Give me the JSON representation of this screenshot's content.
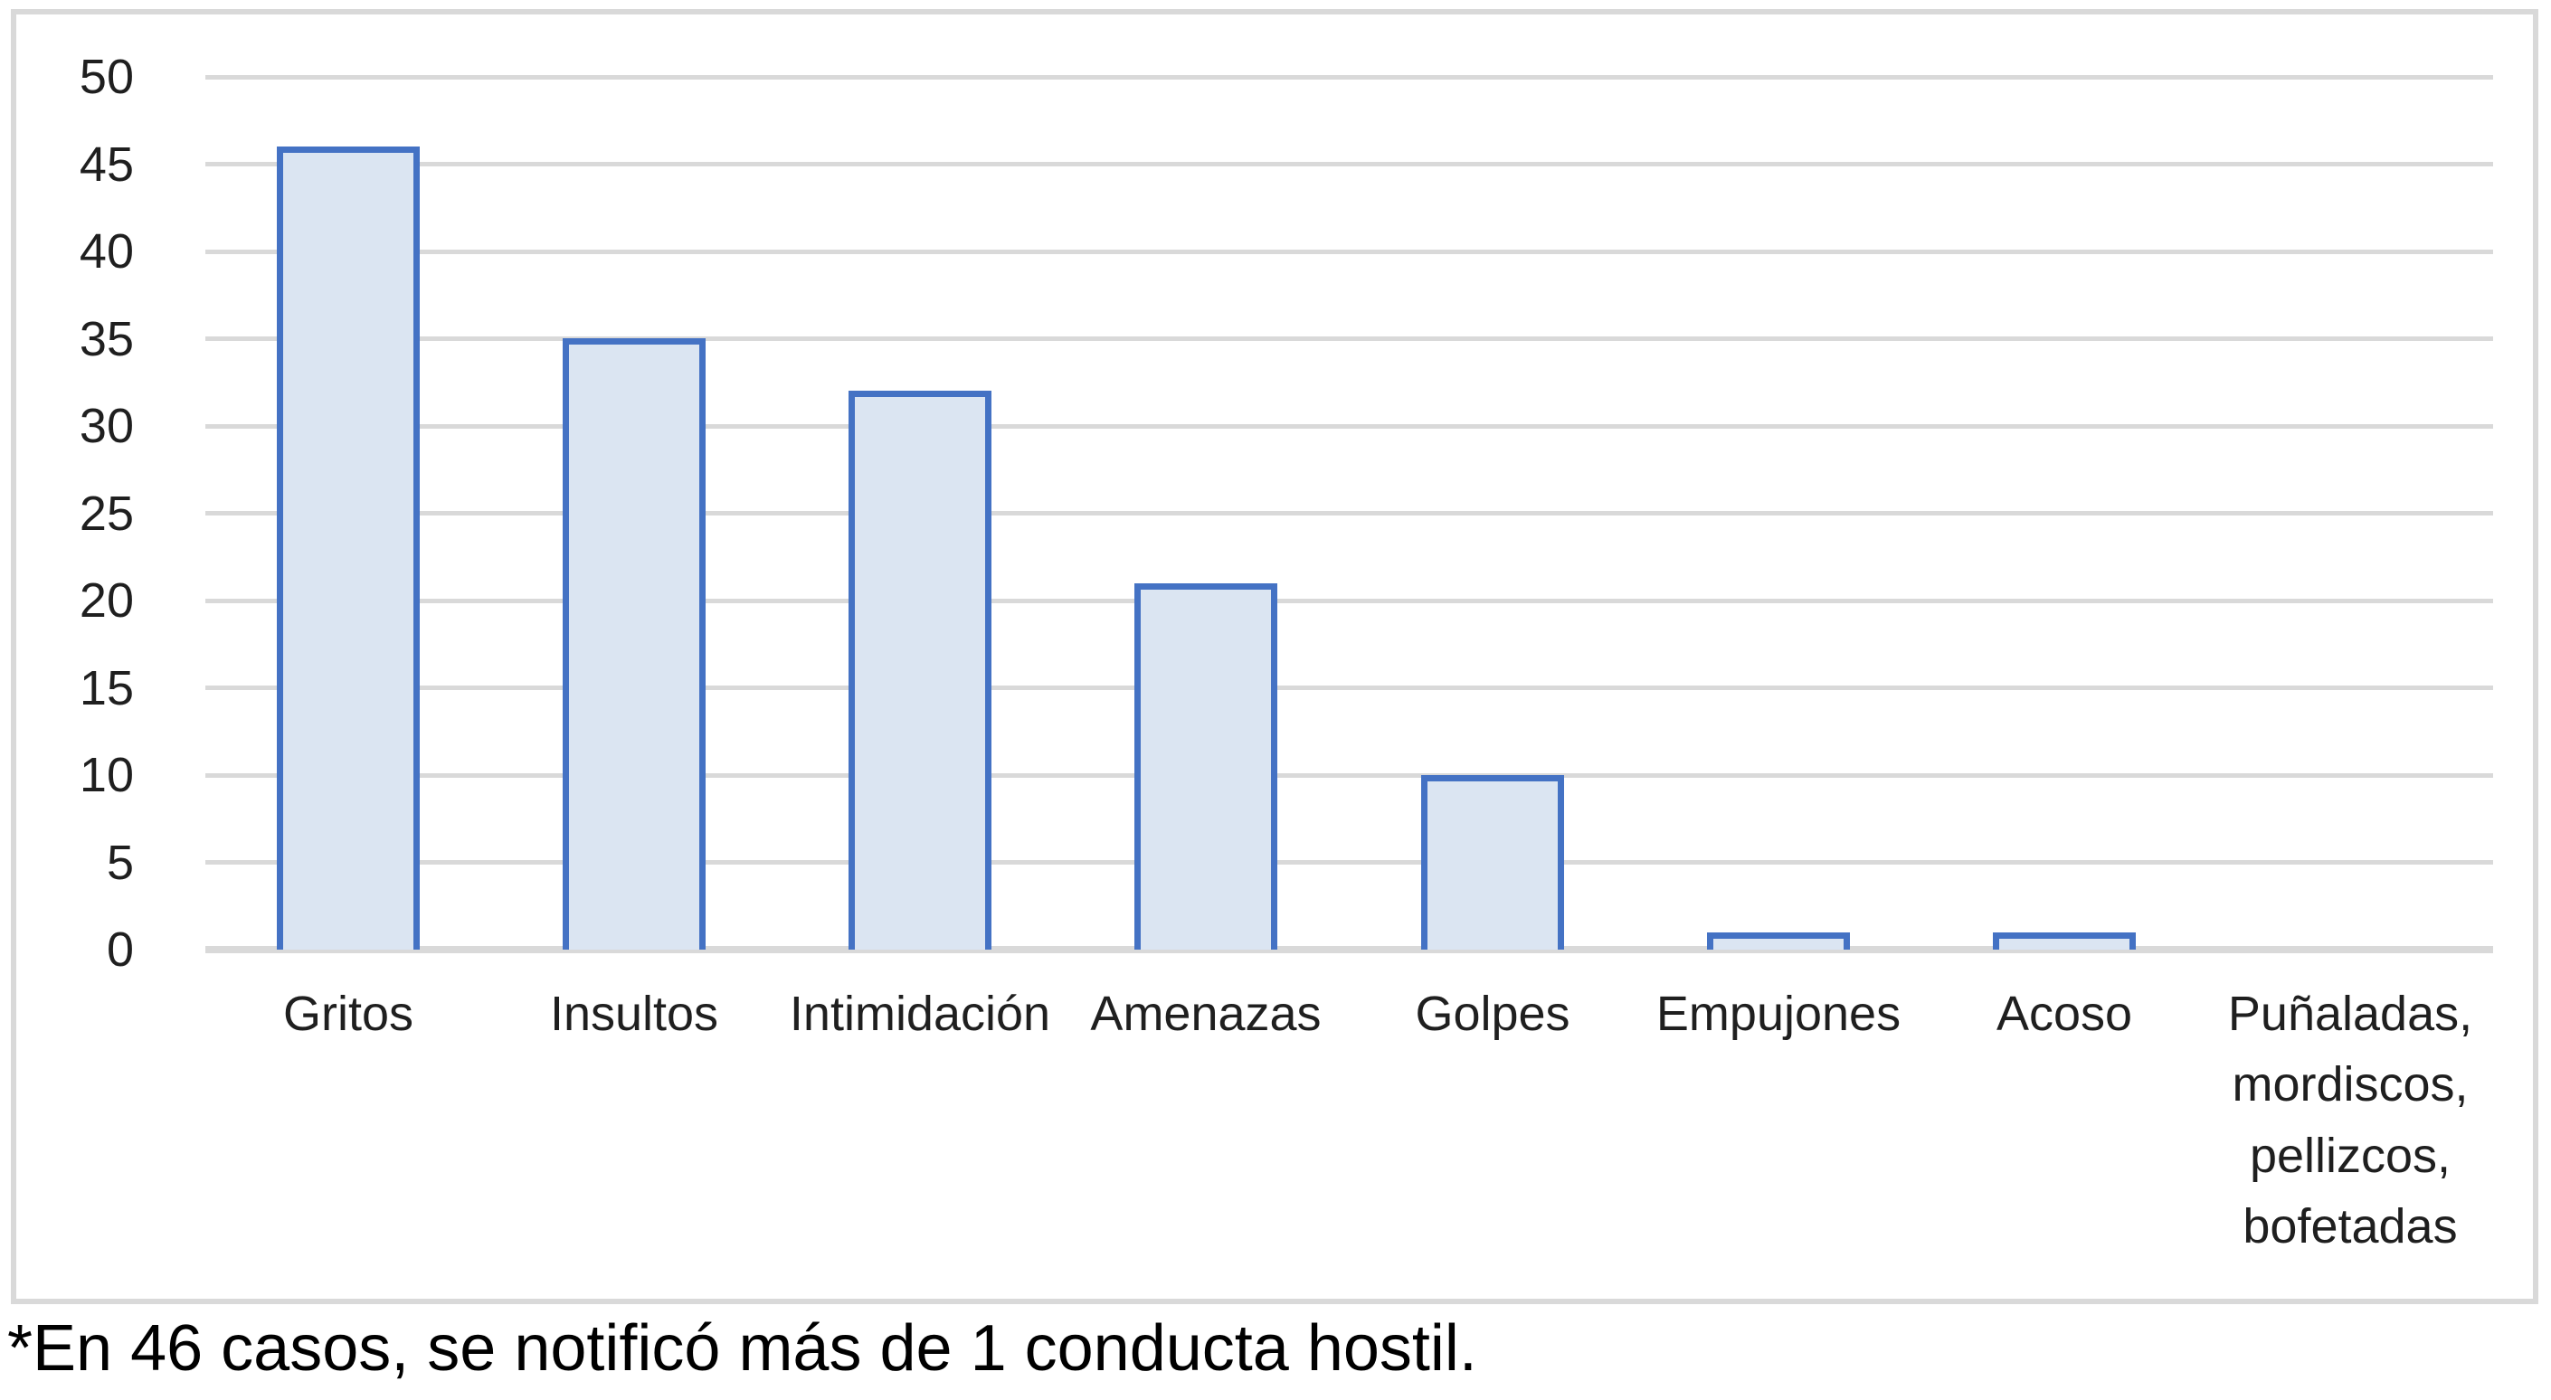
{
  "chart_data": {
    "type": "bar",
    "categories": [
      "Gritos",
      "Insultos",
      "Intimidación",
      "Amenazas",
      "Golpes",
      "Empujones",
      "Acoso",
      "Puñaladas, mordiscos, pellizcos, bofetadas"
    ],
    "values": [
      46,
      35,
      32,
      21,
      10,
      1,
      1,
      0
    ],
    "title": "",
    "xlabel": "",
    "ylabel": "",
    "ylim": [
      0,
      50
    ],
    "yticks": [
      0,
      5,
      10,
      15,
      20,
      25,
      30,
      35,
      40,
      45,
      50
    ],
    "grid": true,
    "legend": false,
    "bar_fill_color": "#dbe5f2",
    "bar_border_color": "#4472c4",
    "gridline_color": "#d9d9d9",
    "frame_border_color": "#d9d9d9",
    "label_color": "#1f1f1f"
  },
  "footnote": "*En 46 casos, se notificó más de 1 conducta hostil."
}
